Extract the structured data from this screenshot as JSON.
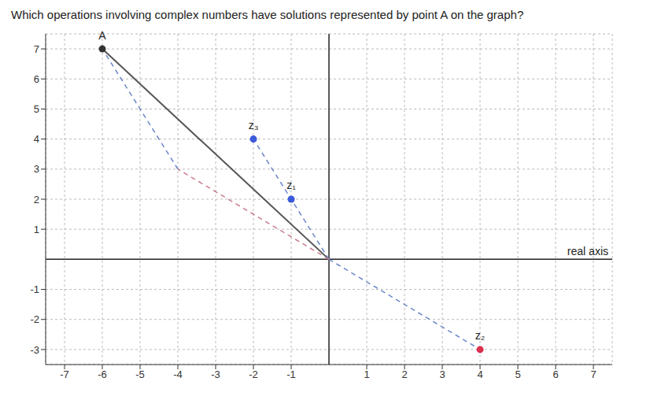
{
  "chart_data": {
    "type": "scatter",
    "title": "Which operations involving complex numbers have solutions represented by point A on the graph?",
    "x_label": "real axis",
    "xlim": [
      -7.5,
      7.5
    ],
    "ylim": [
      -3.5,
      7.5
    ],
    "xticks": [
      -7,
      -6,
      -5,
      -4,
      -3,
      -2,
      -1,
      1,
      2,
      3,
      4,
      5,
      6,
      7
    ],
    "yticks": [
      -3,
      -2,
      -1,
      1,
      2,
      3,
      4,
      5,
      6,
      7
    ],
    "grid": true,
    "points": [
      {
        "name": "A",
        "x": -6,
        "y": 7,
        "color": "#333333"
      },
      {
        "name": "z₁",
        "x": -1,
        "y": 2,
        "color": "#3b5bdb"
      },
      {
        "name": "z₂",
        "x": 4,
        "y": -3,
        "color": "#d9304f"
      },
      {
        "name": "z₃",
        "x": -2,
        "y": 4,
        "color": "#3b5bdb"
      }
    ],
    "series": [
      {
        "x": [
          0,
          -6
        ],
        "values": [
          0,
          7
        ],
        "line_style": "solid",
        "color": "#555555"
      },
      {
        "x": [
          0,
          -2
        ],
        "values": [
          0,
          4
        ],
        "line_style": "dashed",
        "color": "#6b86c9"
      },
      {
        "x": [
          0,
          4
        ],
        "values": [
          0,
          -3
        ],
        "line_style": "dashed",
        "color": "#6b86c9"
      },
      {
        "x": [
          0,
          -4
        ],
        "values": [
          0,
          3
        ],
        "line_style": "dashed",
        "color": "#c97b8a"
      },
      {
        "x": [
          -4,
          -6
        ],
        "values": [
          3,
          7
        ],
        "line_style": "dashed",
        "color": "#6b86c9"
      }
    ]
  }
}
